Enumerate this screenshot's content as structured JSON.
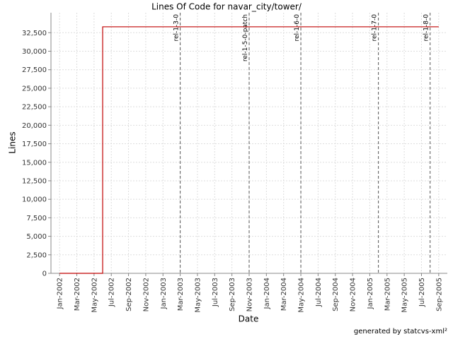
{
  "chart_data": {
    "type": "line",
    "title": "Lines Of Code for navar_city/tower/",
    "x_label": "Date",
    "y_label": "Lines",
    "footer": "generated by statcvs-xml²",
    "series": [
      {
        "name": "Lines",
        "color": "#c00000",
        "x": [
          "2002-01",
          "2002-06",
          "2002-06",
          "2005-09"
        ],
        "values": [
          0,
          0,
          33300,
          33300
        ]
      }
    ],
    "annotations": [
      {
        "x": "2003-03",
        "label": "rel-1-3-0"
      },
      {
        "x": "2003-11",
        "label": "rel-1-5-0-patch"
      },
      {
        "x": "2004-05",
        "label": "rel-1-6-0"
      },
      {
        "x": "2005-02",
        "label": "rel-1-7-0"
      },
      {
        "x": "2005-08",
        "label": "rel-1-8-0"
      }
    ],
    "xlim": [
      "2001-12",
      "2005-10"
    ],
    "xticks": [
      {
        "value": "2002-01",
        "label": "Jan-2002"
      },
      {
        "value": "2002-03",
        "label": "Mar-2002"
      },
      {
        "value": "2002-05",
        "label": "May-2002"
      },
      {
        "value": "2002-07",
        "label": "Jul-2002"
      },
      {
        "value": "2002-09",
        "label": "Sep-2002"
      },
      {
        "value": "2002-11",
        "label": "Nov-2002"
      },
      {
        "value": "2003-01",
        "label": "Jan-2003"
      },
      {
        "value": "2003-03",
        "label": "Mar-2003"
      },
      {
        "value": "2003-05",
        "label": "May-2003"
      },
      {
        "value": "2003-07",
        "label": "Jul-2003"
      },
      {
        "value": "2003-09",
        "label": "Sep-2003"
      },
      {
        "value": "2003-11",
        "label": "Nov-2003"
      },
      {
        "value": "2004-01",
        "label": "Jan-2004"
      },
      {
        "value": "2004-03",
        "label": "Mar-2004"
      },
      {
        "value": "2004-05",
        "label": "May-2004"
      },
      {
        "value": "2004-07",
        "label": "Jul-2004"
      },
      {
        "value": "2004-09",
        "label": "Sep-2004"
      },
      {
        "value": "2004-11",
        "label": "Nov-2004"
      },
      {
        "value": "2005-01",
        "label": "Jan-2005"
      },
      {
        "value": "2005-03",
        "label": "Mar-2005"
      },
      {
        "value": "2005-05",
        "label": "May-2005"
      },
      {
        "value": "2005-07",
        "label": "Jul-2005"
      },
      {
        "value": "2005-09",
        "label": "Sep-2005"
      }
    ],
    "ylim": [
      0,
      35200
    ],
    "yticks": [
      0,
      {
        "value": 2500,
        "label": "2,500"
      },
      {
        "value": 5000,
        "label": "5,000"
      },
      {
        "value": 7500,
        "label": "7,500"
      },
      {
        "value": 10000,
        "label": "10,000"
      },
      {
        "value": 12500,
        "label": "12,500"
      },
      {
        "value": 15000,
        "label": "15,000"
      },
      {
        "value": 17500,
        "label": "17,500"
      },
      {
        "value": 20000,
        "label": "20,000"
      },
      {
        "value": 22500,
        "label": "22,500"
      },
      {
        "value": 25000,
        "label": "25,000"
      },
      {
        "value": 27500,
        "label": "27,500"
      },
      {
        "value": 30000,
        "label": "30,000"
      },
      {
        "value": 32500,
        "label": "32,500"
      }
    ],
    "grid": true
  }
}
